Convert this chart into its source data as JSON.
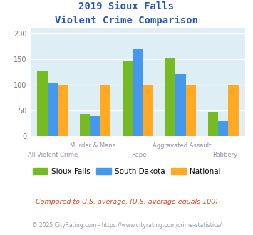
{
  "title_line1": "2019 Sioux Falls",
  "title_line2": "Violent Crime Comparison",
  "categories": [
    "All Violent Crime",
    "Murder & Mans...",
    "Rape",
    "Aggravated Assault",
    "Robbery"
  ],
  "cat_labels_row1": [
    "",
    "Murder & Mans...",
    "",
    "Aggravated Assault",
    ""
  ],
  "cat_labels_row2": [
    "All Violent Crime",
    "",
    "Rape",
    "",
    "Robbery"
  ],
  "sioux_falls": [
    126,
    44,
    147,
    152,
    47
  ],
  "south_dakota": [
    105,
    39,
    170,
    121,
    29
  ],
  "national": [
    100,
    100,
    100,
    100,
    100
  ],
  "colors": {
    "sioux_falls": "#77bb22",
    "south_dakota": "#4499ee",
    "national": "#ffaa22"
  },
  "ylim": [
    0,
    210
  ],
  "yticks": [
    0,
    50,
    100,
    150,
    200
  ],
  "title_color": "#2255bb",
  "background_color": "#ddeef5",
  "legend_labels": [
    "Sioux Falls",
    "South Dakota",
    "National"
  ],
  "footnote1": "Compared to U.S. average. (U.S. average equals 100)",
  "footnote2": "© 2025 CityRating.com - https://www.cityrating.com/crime-statistics/",
  "footnote1_color": "#cc4422",
  "footnote2_color": "#8899aa",
  "label_color": "#9988aa"
}
